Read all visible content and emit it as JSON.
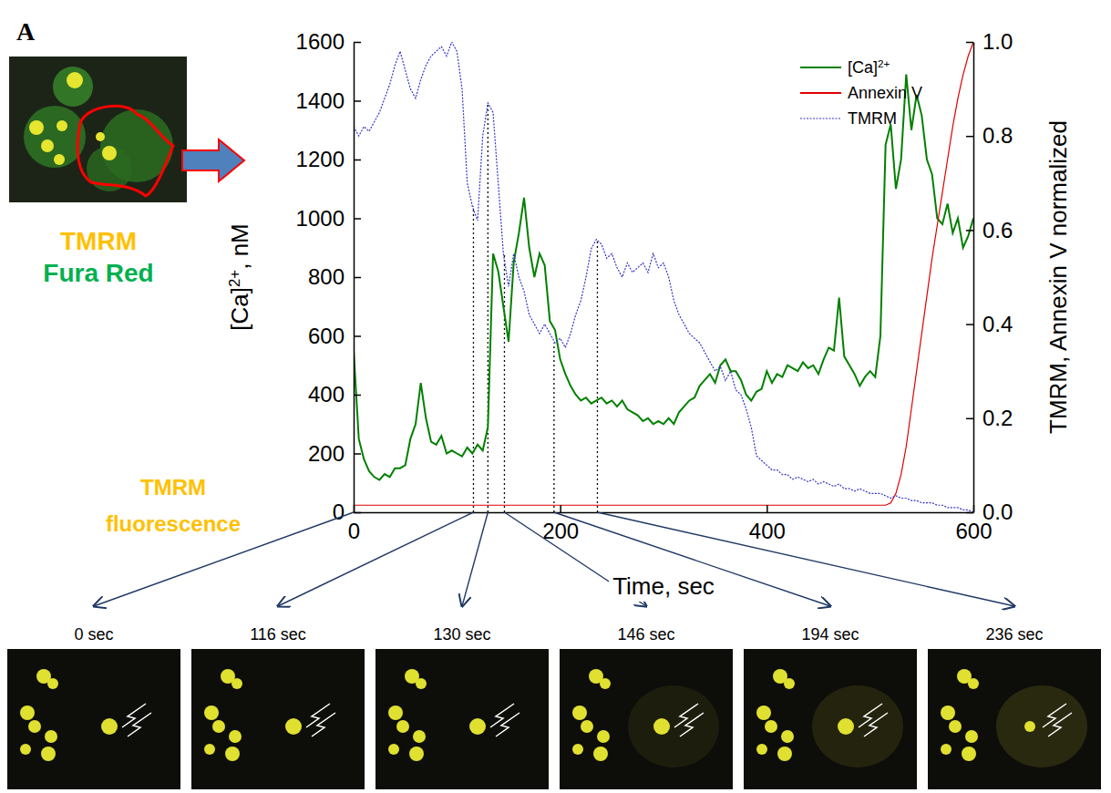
{
  "chart_data": {
    "type": "line",
    "panel_label": "A",
    "x_label": "Time, sec",
    "y_label": "[Ca]2+, nM",
    "y2_label": "TMRM, Annexin V normalized",
    "xlim": [
      0,
      600
    ],
    "xticks": [
      0,
      200,
      400,
      600
    ],
    "ylim": [
      0,
      1600
    ],
    "yticks": [
      0,
      200,
      400,
      600,
      800,
      1000,
      1200,
      1400,
      1600
    ],
    "y2lim": [
      0,
      1
    ],
    "y2ticks": [
      {
        "value": 0,
        "label": "0.0"
      },
      {
        "value": 0.2,
        "label": "0.2"
      },
      {
        "value": 0.4,
        "label": "0.4"
      },
      {
        "value": 0.6,
        "label": "0.6"
      },
      {
        "value": 0.8,
        "label": "0.8"
      },
      {
        "value": 1,
        "label": "1.0"
      }
    ],
    "legend": "top-right",
    "grid": false,
    "x": [
      0,
      5,
      10,
      15,
      20,
      25,
      30,
      35,
      40,
      45,
      50,
      55,
      60,
      65,
      70,
      75,
      80,
      85,
      90,
      95,
      100,
      105,
      110,
      115,
      120,
      125,
      130,
      135,
      140,
      145,
      150,
      155,
      160,
      165,
      170,
      175,
      180,
      185,
      190,
      195,
      200,
      205,
      210,
      215,
      220,
      225,
      230,
      235,
      240,
      245,
      250,
      255,
      260,
      265,
      270,
      275,
      280,
      285,
      290,
      295,
      300,
      305,
      310,
      315,
      320,
      325,
      330,
      335,
      340,
      345,
      350,
      355,
      360,
      365,
      370,
      375,
      380,
      385,
      390,
      395,
      400,
      405,
      410,
      415,
      420,
      425,
      430,
      435,
      440,
      445,
      450,
      455,
      460,
      465,
      470,
      475,
      480,
      485,
      490,
      495,
      500,
      505,
      510,
      515,
      520,
      525,
      530,
      535,
      540,
      545,
      550,
      555,
      560,
      565,
      570,
      575,
      580,
      585,
      590,
      595,
      600
    ],
    "series": [
      {
        "name": "[Ca]2+",
        "color": "#008000",
        "line_style": "solid",
        "values": [
          550,
          250,
          180,
          140,
          120,
          110,
          130,
          120,
          150,
          150,
          160,
          250,
          300,
          440,
          320,
          240,
          230,
          260,
          200,
          210,
          200,
          190,
          220,
          200,
          230,
          210,
          290,
          880,
          820,
          700,
          580,
          850,
          950,
          1070,
          900,
          800,
          880,
          840,
          650,
          620,
          520,
          470,
          430,
          400,
          380,
          390,
          370,
          380,
          390,
          370,
          380,
          360,
          380,
          350,
          340,
          330,
          310,
          320,
          300,
          310,
          300,
          320,
          300,
          340,
          360,
          380,
          390,
          430,
          450,
          470,
          440,
          500,
          520,
          480,
          480,
          450,
          400,
          380,
          410,
          420,
          480,
          440,
          470,
          460,
          500,
          490,
          480,
          510,
          490,
          500,
          470,
          520,
          560,
          550,
          730,
          530,
          500,
          470,
          430,
          460,
          480,
          460,
          600,
          1250,
          1320,
          1100,
          1200,
          1490,
          1300,
          1420,
          1350,
          1200,
          1150,
          1000,
          980,
          1050,
          950,
          1000,
          900,
          940,
          1000
        ]
      },
      {
        "name": "Annexin V",
        "color": "#e00000",
        "line_style": "solid",
        "axis": "y2",
        "values": [
          0.015,
          0.015,
          0.015,
          0.015,
          0.015,
          0.015,
          0.015,
          0.015,
          0.015,
          0.015,
          0.015,
          0.015,
          0.015,
          0.015,
          0.015,
          0.015,
          0.015,
          0.015,
          0.015,
          0.015,
          0.015,
          0.015,
          0.015,
          0.015,
          0.015,
          0.015,
          0.015,
          0.015,
          0.015,
          0.015,
          0.015,
          0.015,
          0.015,
          0.015,
          0.015,
          0.015,
          0.015,
          0.015,
          0.015,
          0.015,
          0.015,
          0.015,
          0.015,
          0.015,
          0.015,
          0.015,
          0.015,
          0.015,
          0.015,
          0.015,
          0.015,
          0.015,
          0.015,
          0.015,
          0.015,
          0.015,
          0.015,
          0.015,
          0.015,
          0.015,
          0.015,
          0.015,
          0.015,
          0.015,
          0.015,
          0.015,
          0.015,
          0.015,
          0.015,
          0.015,
          0.015,
          0.015,
          0.015,
          0.015,
          0.015,
          0.015,
          0.015,
          0.015,
          0.015,
          0.015,
          0.015,
          0.015,
          0.015,
          0.015,
          0.015,
          0.015,
          0.015,
          0.015,
          0.015,
          0.015,
          0.015,
          0.015,
          0.015,
          0.015,
          0.015,
          0.015,
          0.015,
          0.015,
          0.015,
          0.015,
          0.015,
          0.015,
          0.015,
          0.015,
          0.02,
          0.04,
          0.08,
          0.14,
          0.22,
          0.3,
          0.38,
          0.46,
          0.54,
          0.61,
          0.68,
          0.75,
          0.82,
          0.88,
          0.93,
          0.97,
          1.0
        ]
      },
      {
        "name": "TMRM",
        "color": "#3333cc",
        "line_style": "dotted",
        "axis": "y2",
        "values": [
          0.82,
          0.8,
          0.82,
          0.81,
          0.83,
          0.85,
          0.88,
          0.91,
          0.95,
          0.98,
          0.94,
          0.9,
          0.88,
          0.92,
          0.95,
          0.97,
          0.98,
          0.99,
          0.97,
          1.0,
          0.98,
          0.9,
          0.7,
          0.65,
          0.62,
          0.8,
          0.87,
          0.85,
          0.7,
          0.55,
          0.48,
          0.55,
          0.5,
          0.47,
          0.42,
          0.4,
          0.38,
          0.4,
          0.38,
          0.36,
          0.37,
          0.35,
          0.38,
          0.42,
          0.45,
          0.5,
          0.56,
          0.58,
          0.57,
          0.54,
          0.55,
          0.52,
          0.5,
          0.53,
          0.51,
          0.52,
          0.53,
          0.51,
          0.55,
          0.52,
          0.53,
          0.5,
          0.45,
          0.42,
          0.4,
          0.38,
          0.37,
          0.36,
          0.34,
          0.32,
          0.3,
          0.31,
          0.28,
          0.3,
          0.26,
          0.25,
          0.22,
          0.18,
          0.12,
          0.11,
          0.1,
          0.09,
          0.09,
          0.08,
          0.08,
          0.07,
          0.075,
          0.07,
          0.065,
          0.07,
          0.06,
          0.065,
          0.06,
          0.055,
          0.06,
          0.05,
          0.05,
          0.045,
          0.05,
          0.045,
          0.04,
          0.04,
          0.04,
          0.035,
          0.03,
          0.035,
          0.03,
          0.03,
          0.025,
          0.025,
          0.02,
          0.02,
          0.02,
          0.015,
          0.015,
          0.01,
          0.01,
          0.01,
          0.005,
          0.005,
          0
        ]
      }
    ],
    "inset_labels": [
      {
        "text": "TMRM",
        "color": "#ffc000"
      },
      {
        "text": "Fura Red",
        "color": "#00b050"
      }
    ],
    "image_label": {
      "text": "TMRM fluorescence",
      "color": "#ffc000"
    },
    "snapshots": [
      {
        "time": 0,
        "label": "0 sec"
      },
      {
        "time": 116,
        "label": "116 sec"
      },
      {
        "time": 130,
        "label": "130 sec"
      },
      {
        "time": 146,
        "label": "146 sec"
      },
      {
        "time": 194,
        "label": "194 sec"
      },
      {
        "time": 236,
        "label": "236 sec"
      }
    ]
  }
}
